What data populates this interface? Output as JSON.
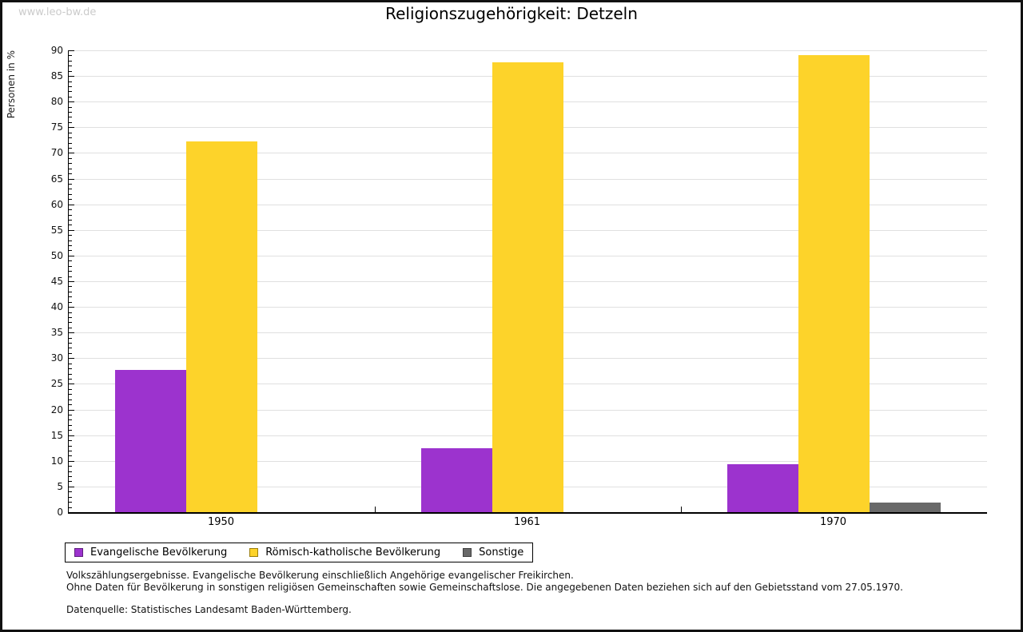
{
  "watermark": "www.leo-bw.de",
  "title": "Religionszugehörigkeit: Detzeln",
  "footnotes": {
    "line1": "Volkszählungsergebnisse. Evangelische Bevölkerung einschließlich Angehörige evangelischer Freikirchen.",
    "line2": "Ohne Daten für Bevölkerung in sonstigen religiösen Gemeinschaften sowie Gemeinschaftslose. Die angegebenen Daten beziehen sich auf den Gebietsstand vom 27.05.1970.",
    "source": "Datenquelle: Statistisches Landesamt Baden-Württemberg."
  },
  "colors": {
    "gridline": "#e0e0e0",
    "axis": "#000000",
    "watermark": "#cbcbcb"
  },
  "chart_data": {
    "type": "bar",
    "title": "Religionszugehörigkeit: Detzeln",
    "categories": [
      "1950",
      "1961",
      "1970"
    ],
    "series": [
      {
        "name": "Evangelische Bevölkerung",
        "color": "#9c33ce",
        "swatch_border": "#5e1f7e",
        "values": [
          27.7,
          12.4,
          9.4
        ]
      },
      {
        "name": "Römisch-katholische Bevölkerung",
        "color": "#fdd32a",
        "swatch_border": "#9a7d0a",
        "values": [
          72.3,
          87.6,
          89.0
        ]
      },
      {
        "name": "Sonstige",
        "color": "#696969",
        "swatch_border": "#3f3f3f",
        "values": [
          0,
          0,
          1.9
        ]
      }
    ],
    "xlabel": "",
    "ylabel": "Personen in %",
    "ylim": [
      0,
      90
    ],
    "ytick_major_step": 5,
    "ytick_minor_step": 1,
    "grid": true,
    "legend_position": "bottom"
  }
}
